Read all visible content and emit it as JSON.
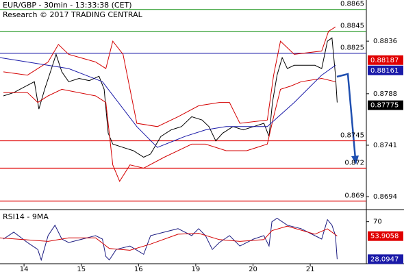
{
  "chart_data": [
    {
      "type": "line",
      "title": "EUR/GBP - 30min - 13:33:38 (CET)",
      "subtitle": "Research © 2017 TRADING CENTRAL",
      "xlim": [
        -0.42,
        5.98
      ],
      "ylim": [
        0.86828,
        0.88736
      ],
      "yticks": [
        0.8836,
        0.8788,
        0.8741,
        0.8694
      ],
      "series": [
        {
          "color": "#000000",
          "x": [
            -0.36,
            -0.18,
            0.0,
            0.18,
            0.26,
            0.36,
            0.48,
            0.56,
            0.66,
            0.78,
            0.96,
            1.14,
            1.31,
            1.4,
            1.47,
            1.55,
            1.73,
            1.91,
            2.09,
            2.21,
            2.39,
            2.57,
            2.75,
            2.93,
            3.11,
            3.23,
            3.35,
            3.47,
            3.65,
            3.83,
            4.01,
            4.19,
            4.28,
            4.34,
            4.42,
            4.51,
            4.6,
            4.72,
            4.9,
            5.08,
            5.2,
            5.3,
            5.38,
            5.44,
            5.47
          ],
          "values": [
            0.8786,
            0.8789,
            0.8794,
            0.8799,
            0.8774,
            0.8792,
            0.8811,
            0.8824,
            0.8808,
            0.8799,
            0.8802,
            0.88,
            0.8804,
            0.8792,
            0.8752,
            0.8742,
            0.8739,
            0.8736,
            0.873,
            0.8733,
            0.8749,
            0.8755,
            0.8758,
            0.8767,
            0.8764,
            0.8758,
            0.8745,
            0.8752,
            0.8758,
            0.8755,
            0.8758,
            0.8761,
            0.8749,
            0.878,
            0.8805,
            0.8821,
            0.8811,
            0.8814,
            0.8814,
            0.8814,
            0.8811,
            0.8836,
            0.8839,
            0.8805,
            0.878
          ]
        },
        {
          "color": "#d40000",
          "x": [
            -0.36,
            0.06,
            0.42,
            0.6,
            0.78,
            1.25,
            1.43,
            1.55,
            1.73,
            1.97,
            2.33,
            2.69,
            3.05,
            3.41,
            3.59,
            3.77,
            4.25,
            4.36,
            4.48,
            4.72,
            5.2,
            5.32,
            5.44
          ],
          "values": [
            0.8808,
            0.8805,
            0.8817,
            0.8833,
            0.8824,
            0.8817,
            0.8811,
            0.8836,
            0.8824,
            0.8761,
            0.8758,
            0.8767,
            0.8777,
            0.878,
            0.878,
            0.8761,
            0.8764,
            0.8805,
            0.8836,
            0.8824,
            0.8827,
            0.8845,
            0.8849
          ]
        },
        {
          "color": "#d40000",
          "x": [
            -0.36,
            0.06,
            0.24,
            0.42,
            0.66,
            1.25,
            1.43,
            1.55,
            1.67,
            1.85,
            2.09,
            2.45,
            2.93,
            3.17,
            3.53,
            3.89,
            4.25,
            4.36,
            4.48,
            4.66,
            4.84,
            5.2,
            5.44
          ],
          "values": [
            0.8789,
            0.8789,
            0.878,
            0.8786,
            0.8792,
            0.8786,
            0.878,
            0.8723,
            0.8708,
            0.8723,
            0.872,
            0.873,
            0.8742,
            0.8742,
            0.8736,
            0.8736,
            0.8742,
            0.8767,
            0.8792,
            0.8795,
            0.8799,
            0.8802,
            0.8799
          ]
        },
        {
          "color": "#1a1aa8",
          "x": [
            -0.42,
            0.78,
            1.37,
            1.97,
            2.33,
            2.81,
            3.17,
            3.53,
            4.01,
            4.25,
            4.72,
            5.2,
            5.44
          ],
          "values": [
            0.8821,
            0.8811,
            0.8799,
            0.8758,
            0.8739,
            0.8749,
            0.8755,
            0.8758,
            0.8758,
            0.8758,
            0.878,
            0.8805,
            0.8814
          ]
        }
      ],
      "levels": [
        {
          "value": 0.8865,
          "color": "#2e9e2e"
        },
        {
          "value": 0.8845,
          "color": "#2e9e2e"
        },
        {
          "value": 0.8825,
          "color": "#1a1aa8"
        },
        {
          "value": 0.8745,
          "color": "#e00000"
        },
        {
          "value": 0.872,
          "color": "#e00000"
        },
        {
          "value": 0.869,
          "color": "#e00000"
        }
      ],
      "price_tags": [
        {
          "value": 0.88187,
          "color": "#e00000"
        },
        {
          "value": 0.88161,
          "color": "#1a1aa8"
        },
        {
          "value": 0.87775,
          "color": "#000000"
        }
      ]
    },
    {
      "type": "line",
      "title": "RSI14 - 9MA",
      "xlim": [
        -0.42,
        5.98
      ],
      "ylim": [
        23,
        82
      ],
      "yticks": [
        70
      ],
      "xticks": [
        {
          "value": 0,
          "label": "14"
        },
        {
          "value": 1,
          "label": "15"
        },
        {
          "value": 2,
          "label": "16"
        },
        {
          "value": 3,
          "label": "19"
        },
        {
          "value": 4,
          "label": "20"
        },
        {
          "value": 5,
          "label": "21"
        }
      ],
      "series": [
        {
          "color": "#1a1a80",
          "x": [
            -0.36,
            -0.18,
            0.06,
            0.24,
            0.3,
            0.42,
            0.54,
            0.66,
            0.78,
            1.02,
            1.25,
            1.37,
            1.43,
            1.49,
            1.61,
            1.85,
            2.09,
            2.21,
            2.45,
            2.69,
            2.93,
            3.05,
            3.17,
            3.29,
            3.41,
            3.59,
            3.77,
            4.01,
            4.19,
            4.28,
            4.33,
            4.42,
            4.6,
            4.84,
            5.08,
            5.2,
            5.3,
            5.38,
            5.44,
            5.47
          ],
          "values": [
            50.6,
            58.3,
            46.7,
            38.9,
            27.2,
            54.4,
            66.1,
            50.6,
            46.7,
            50.6,
            54.4,
            50.6,
            31.1,
            27.2,
            38.9,
            42.8,
            33.5,
            54.4,
            58.3,
            62.2,
            54.4,
            62.2,
            54.4,
            38.9,
            46.7,
            54.4,
            42.8,
            50.6,
            54.4,
            42.8,
            70,
            73.9,
            66.1,
            62.2,
            54.4,
            50.6,
            72.3,
            66.1,
            54.4,
            28.1
          ]
        },
        {
          "color": "#d40000",
          "x": [
            -0.42,
            0.42,
            0.78,
            1.25,
            1.49,
            1.85,
            2.21,
            2.69,
            3.05,
            3.41,
            3.77,
            4.19,
            4.33,
            4.6,
            5.08,
            5.3,
            5.47
          ],
          "values": [
            52,
            48,
            52,
            52,
            40,
            38,
            45,
            56,
            57,
            50,
            48,
            50,
            60,
            65,
            56,
            62,
            54
          ]
        }
      ],
      "price_tags": [
        {
          "value": 53.9058,
          "color": "#e00000"
        },
        {
          "value": 28.0947,
          "color": "#1a1aa8"
        }
      ]
    }
  ]
}
